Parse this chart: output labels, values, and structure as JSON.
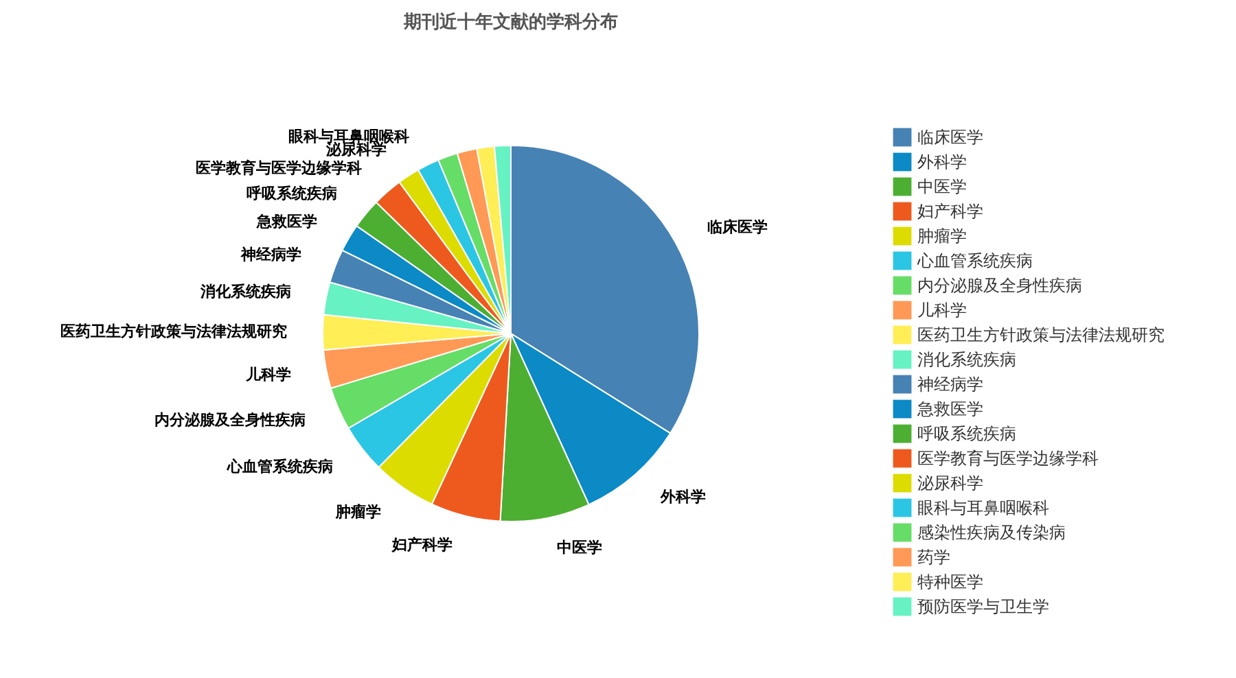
{
  "chart_data": {
    "type": "pie",
    "title": "期刊近十年文献的学科分布",
    "categories": [
      "临床医学",
      "外科学",
      "中医学",
      "妇产科学",
      "肿瘤学",
      "心血管系统疾病",
      "内分泌腺及全身性疾病",
      "儿科学",
      "医药卫生方针政策与法律法规研究",
      "消化系统疾病",
      "神经病学",
      "急救医学",
      "呼吸系统疾病",
      "医学教育与医学边缘学科",
      "泌尿科学",
      "眼科与耳鼻咽喉科",
      "感染性疾病及传染病",
      "药学",
      "特种医学",
      "预防医学与卫生学"
    ],
    "values": [
      33.9,
      9.3,
      7.7,
      6.0,
      5.5,
      4.2,
      3.7,
      3.3,
      3.0,
      2.8,
      2.9,
      2.4,
      2.6,
      2.6,
      1.9,
      1.9,
      1.7,
      1.7,
      1.5,
      1.4
    ],
    "colors": [
      "#4682b4",
      "#0b8ac6",
      "#4caf32",
      "#ee5a1e",
      "#dcdc00",
      "#2bc6e4",
      "#66dd66",
      "#ff9955",
      "#ffee55",
      "#66f2c2",
      "#4682b4",
      "#0b8ac6",
      "#4caf32",
      "#ee5a1e",
      "#dcdc00",
      "#2bc6e4",
      "#66dd66",
      "#ff9955",
      "#ffee55",
      "#66f2c2"
    ],
    "legend": "right"
  }
}
